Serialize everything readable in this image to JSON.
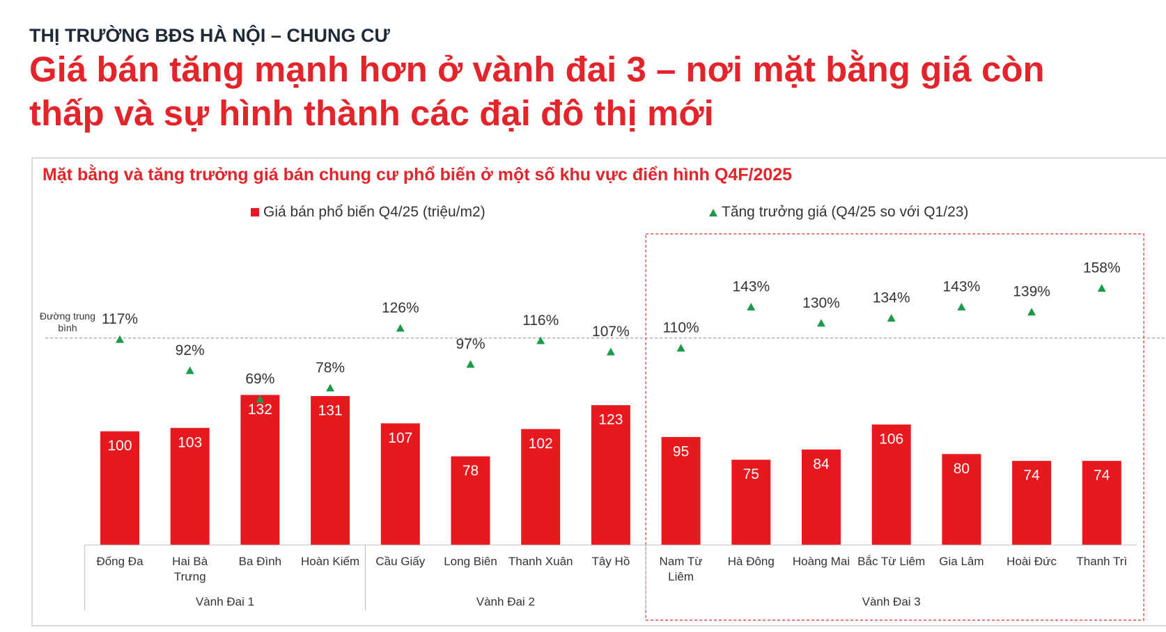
{
  "header": {
    "kicker": "THỊ TRƯỜNG BĐS HÀ NỘI – CHUNG CƯ",
    "title": "Giá bán tăng mạnh hơn ở vành đai 3 – nơi mặt bằng giá còn thấp và sự hình thành các đại đô thị mới"
  },
  "chart_data": {
    "type": "bar",
    "title": "Mặt bằng và tăng trưởng giá bán chung cư phổ biến ở một số khu vực điển hình Q4F/2025",
    "groups": [
      {
        "name": "Vành Đai 1",
        "categories": [
          "Đống Đa",
          "Hai Bà Trưng",
          "Ba Đình",
          "Hoàn Kiếm"
        ]
      },
      {
        "name": "Vành Đai 2",
        "categories": [
          "Cầu Giấy",
          "Long Biên",
          "Thanh Xuân",
          "Tây Hồ"
        ]
      },
      {
        "name": "Vành Đai 3",
        "categories": [
          "Nam Từ Liêm",
          "Hà Đông",
          "Hoàng Mai",
          "Bắc Từ Liêm",
          "Gia Lâm",
          "Hoài Đức",
          "Thanh Trì"
        ],
        "highlighted": true
      }
    ],
    "series": [
      {
        "name": "Giá bán phổ biến Q4/25 (triệu/m2)",
        "type": "bar",
        "color": "#e8191e",
        "values": [
          100,
          103,
          132,
          131,
          107,
          78,
          102,
          123,
          95,
          75,
          84,
          106,
          80,
          74,
          74
        ]
      },
      {
        "name": "Tăng trưởng giá (Q4/25 so với Q1/23)",
        "type": "marker",
        "axis": "y2",
        "color": "#1a9a4a",
        "values": [
          117,
          92,
          69,
          78,
          126,
          97,
          116,
          107,
          110,
          143,
          130,
          134,
          143,
          139,
          158
        ],
        "value_labels": [
          "117%",
          "92%",
          "69%",
          "78%",
          "126%",
          "97%",
          "116%",
          "107%",
          "110%",
          "143%",
          "130%",
          "134%",
          "143%",
          "139%",
          "158%"
        ]
      }
    ],
    "ylim": [
      0,
      300
    ],
    "y2lim": [
      0,
      200
    ],
    "average_line": {
      "label": "Đường trung bình",
      "value": 118,
      "axis": "y2"
    }
  }
}
